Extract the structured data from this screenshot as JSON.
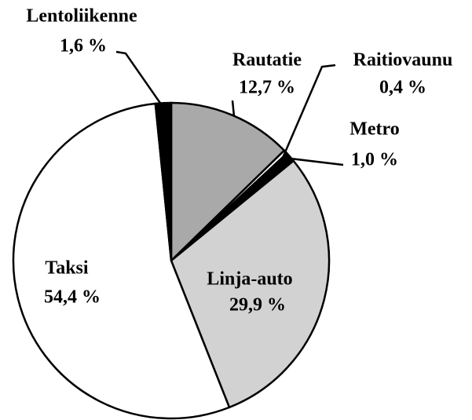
{
  "chart_data": {
    "type": "pie",
    "categories": [
      "Rautatie",
      "Raitiovaunu",
      "Metro",
      "Linja-auto",
      "Taksi",
      "Lentoliikenne"
    ],
    "values": [
      12.7,
      0.4,
      1.0,
      29.9,
      54.4,
      1.6
    ],
    "value_labels": [
      "12,7 %",
      "0,4 %",
      "1,0 %",
      "29,9 %",
      "54,4 %",
      "1,6 %"
    ],
    "colors": [
      "#a9a9a9",
      "#ffffff",
      "#000000",
      "#d2d2d2",
      "#ffffff",
      "#000000"
    ]
  }
}
